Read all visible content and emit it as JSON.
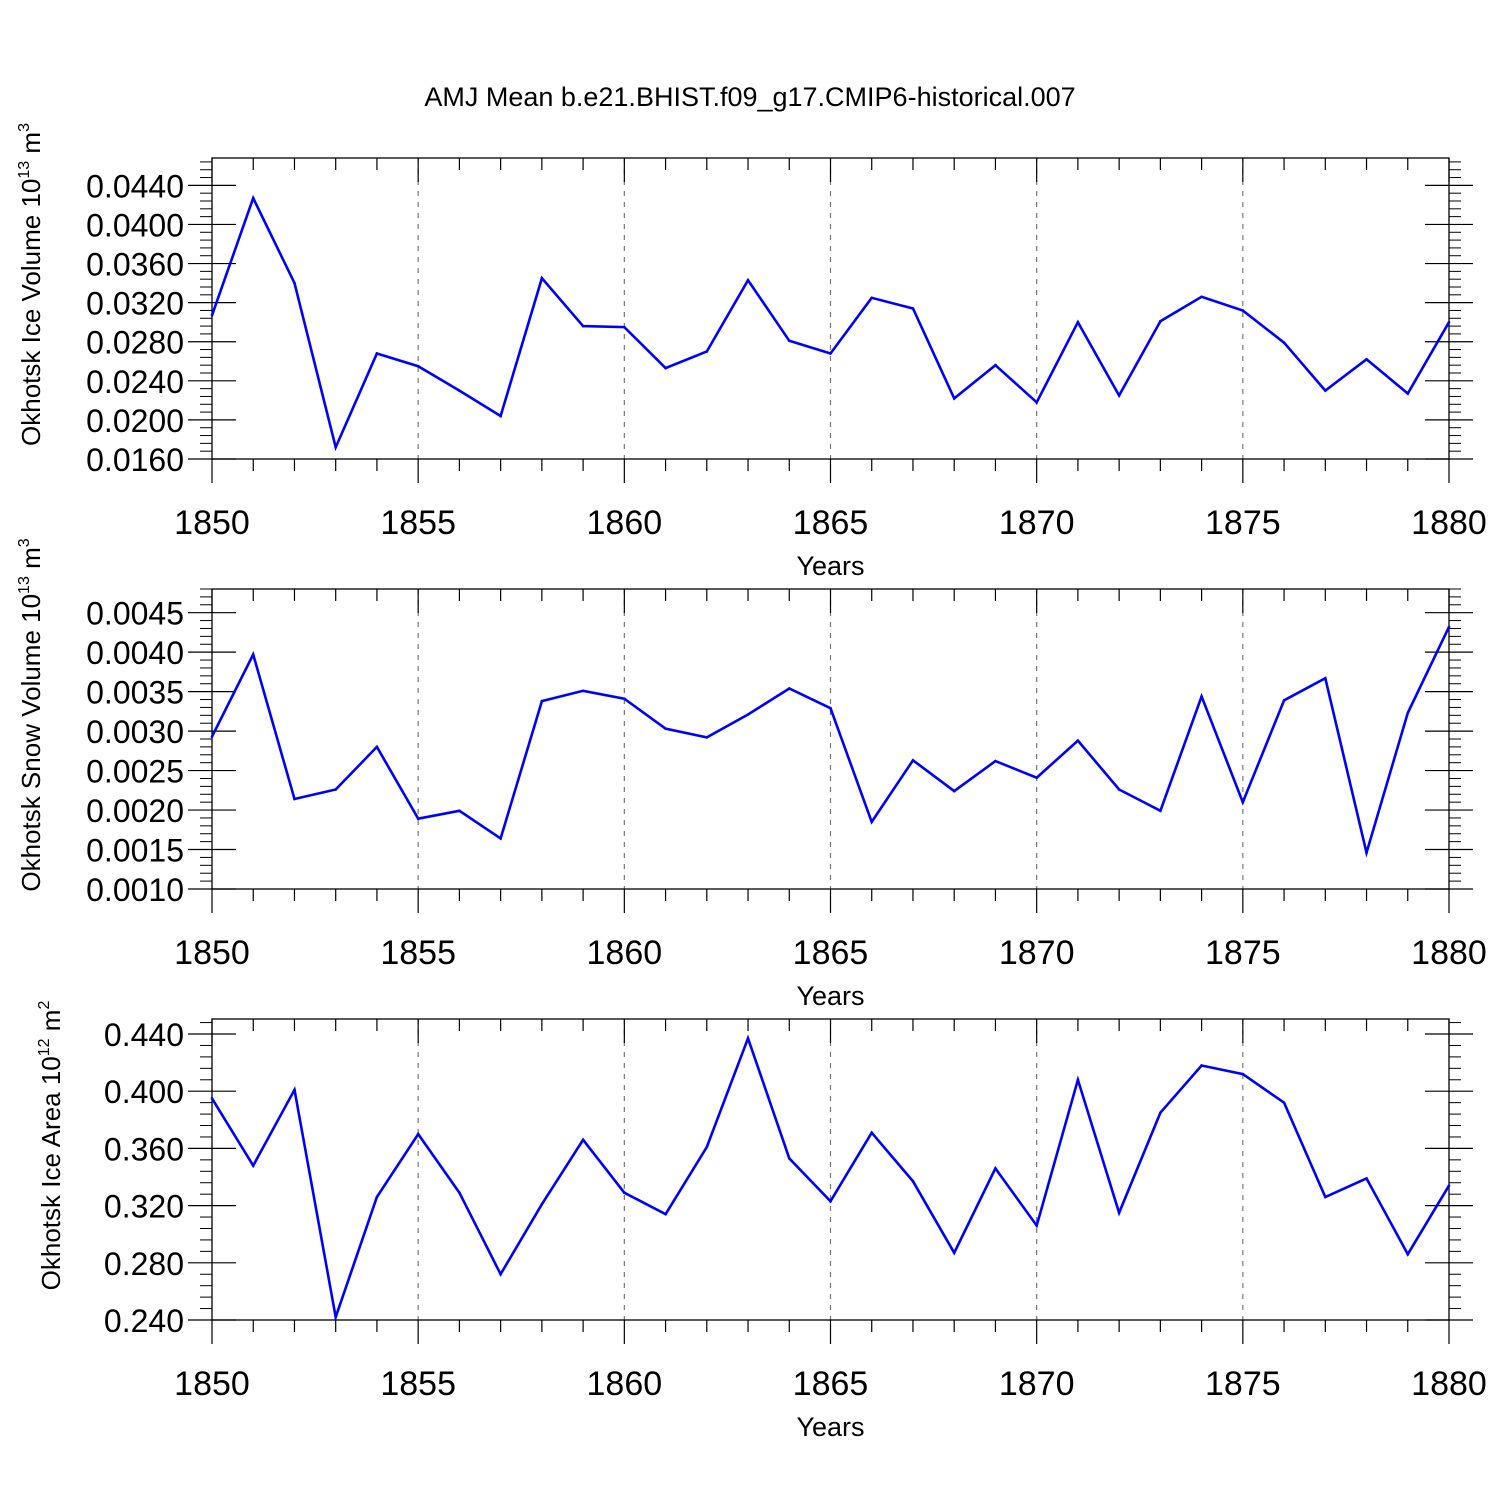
{
  "title": "AMJ Mean b.e21.BHIST.f09_g17.CMIP6-historical.007",
  "chart_data": [
    {
      "type": "line",
      "ylabel": "Okhotsk Ice Volume 10",
      "ylabel_exp": "13",
      "ylabel_unit": "m",
      "ylabel_unit_exp": "3",
      "xlabel": "Years",
      "xlim": [
        1850,
        1880
      ],
      "ylim": [
        0.016,
        0.0468
      ],
      "yticks": [
        0.016,
        0.02,
        0.024,
        0.028,
        0.032,
        0.036,
        0.04,
        0.044
      ],
      "ytick_labels": [
        "0.0160",
        "0.0200",
        "0.0240",
        "0.0280",
        "0.0320",
        "0.0360",
        "0.0400",
        "0.0440"
      ],
      "xticks": [
        1850,
        1855,
        1860,
        1865,
        1870,
        1875,
        1880
      ],
      "xtick_labels": [
        "1850",
        "1855",
        "1860",
        "1865",
        "1870",
        "1875",
        "1880"
      ],
      "color": "#0000ff",
      "x": [
        1850,
        1851,
        1852,
        1853,
        1854,
        1855,
        1856,
        1857,
        1858,
        1859,
        1860,
        1861,
        1862,
        1863,
        1864,
        1865,
        1866,
        1867,
        1868,
        1869,
        1870,
        1871,
        1872,
        1873,
        1874,
        1875,
        1876,
        1877,
        1878,
        1879,
        1880
      ],
      "values": [
        0.0307,
        0.0427,
        0.034,
        0.0172,
        0.0268,
        0.0255,
        0.023,
        0.0204,
        0.0345,
        0.0296,
        0.0295,
        0.0253,
        0.027,
        0.0343,
        0.0281,
        0.0268,
        0.0325,
        0.0314,
        0.0222,
        0.0256,
        0.0218,
        0.03,
        0.0225,
        0.0301,
        0.0326,
        0.0312,
        0.0279,
        0.023,
        0.0262,
        0.0227,
        0.03
      ]
    },
    {
      "type": "line",
      "ylabel": "Okhotsk Snow Volume 10",
      "ylabel_exp": "13",
      "ylabel_unit": "m",
      "ylabel_unit_exp": "3",
      "xlabel": "Years",
      "xlim": [
        1850,
        1880
      ],
      "ylim": [
        0.001,
        0.0048
      ],
      "yticks": [
        0.001,
        0.0015,
        0.002,
        0.0025,
        0.003,
        0.0035,
        0.004,
        0.0045
      ],
      "ytick_labels": [
        "0.0010",
        "0.0015",
        "0.0020",
        "0.0025",
        "0.0030",
        "0.0035",
        "0.0040",
        "0.0045"
      ],
      "xticks": [
        1850,
        1855,
        1860,
        1865,
        1870,
        1875,
        1880
      ],
      "xtick_labels": [
        "1850",
        "1855",
        "1860",
        "1865",
        "1870",
        "1875",
        "1880"
      ],
      "color": "#0000ff",
      "x": [
        1850,
        1851,
        1852,
        1853,
        1854,
        1855,
        1856,
        1857,
        1858,
        1859,
        1860,
        1861,
        1862,
        1863,
        1864,
        1865,
        1866,
        1867,
        1868,
        1869,
        1870,
        1871,
        1872,
        1873,
        1874,
        1875,
        1876,
        1877,
        1878,
        1879,
        1880
      ],
      "values": [
        0.00293,
        0.00397,
        0.00214,
        0.00226,
        0.0028,
        0.00189,
        0.00199,
        0.00164,
        0.00338,
        0.00351,
        0.00341,
        0.00303,
        0.00292,
        0.00321,
        0.00354,
        0.00329,
        0.00185,
        0.00263,
        0.00224,
        0.00262,
        0.00241,
        0.00288,
        0.00226,
        0.00199,
        0.00344,
        0.0021,
        0.00339,
        0.00367,
        0.00146,
        0.00323,
        0.00432
      ]
    },
    {
      "type": "line",
      "ylabel": "Okhotsk Ice Area 10",
      "ylabel_exp": "12",
      "ylabel_unit": "m",
      "ylabel_unit_exp": "2",
      "xlabel": "Years",
      "xlim": [
        1850,
        1880
      ],
      "ylim": [
        0.24,
        0.4505
      ],
      "yticks": [
        0.24,
        0.28,
        0.32,
        0.36,
        0.4,
        0.44
      ],
      "ytick_labels": [
        "0.240",
        "0.280",
        "0.320",
        "0.360",
        "0.400",
        "0.440"
      ],
      "xticks": [
        1850,
        1855,
        1860,
        1865,
        1870,
        1875,
        1880
      ],
      "xtick_labels": [
        "1850",
        "1855",
        "1860",
        "1865",
        "1870",
        "1875",
        "1880"
      ],
      "color": "#0000ff",
      "x": [
        1850,
        1851,
        1852,
        1853,
        1854,
        1855,
        1856,
        1857,
        1858,
        1859,
        1860,
        1861,
        1862,
        1863,
        1864,
        1865,
        1866,
        1867,
        1868,
        1869,
        1870,
        1871,
        1872,
        1873,
        1874,
        1875,
        1876,
        1877,
        1878,
        1879,
        1880
      ],
      "values": [
        0.395,
        0.348,
        0.401,
        0.242,
        0.326,
        0.37,
        0.329,
        0.272,
        0.321,
        0.366,
        0.329,
        0.314,
        0.361,
        0.437,
        0.353,
        0.323,
        0.371,
        0.337,
        0.287,
        0.346,
        0.306,
        0.408,
        0.315,
        0.385,
        0.418,
        0.412,
        0.392,
        0.326,
        0.339,
        0.286,
        0.334
      ]
    }
  ]
}
